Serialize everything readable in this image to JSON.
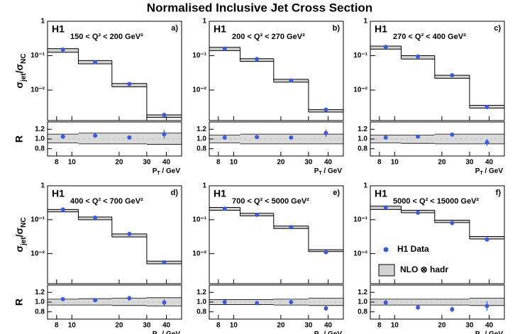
{
  "chart_data": {
    "type": "step",
    "title": "Normalised Inclusive Jet Cross Section",
    "y_label": [
      "σ",
      "jet",
      "/σ",
      "NC"
    ],
    "ratio_label": "R",
    "x_label": [
      "P",
      "T",
      " / GeV"
    ],
    "experiment": "H1",
    "legend": {
      "data": "H1 Data",
      "theory": "NLO ⊗ hadr"
    },
    "data_color": "#3b5bdb",
    "band_color": "#d3d3d3",
    "log_x": true,
    "log_y": true,
    "bins": [
      7,
      11,
      18,
      30,
      50
    ],
    "xlim": [
      7,
      50
    ],
    "xticks": [
      8,
      10,
      20,
      30,
      40
    ],
    "ylim": [
      0.0013,
      1
    ],
    "yticks": [
      1,
      {
        "value": 0.1,
        "label": "10⁻¹"
      },
      {
        "value": 0.01,
        "label": "10⁻²"
      }
    ],
    "ratio_ylim": [
      0.65,
      1.35
    ],
    "ratio_yticks": [
      {
        "value": 0.8,
        "label": "0.8"
      },
      {
        "value": 1.0,
        "label": "1.0"
      },
      {
        "value": 1.2,
        "label": "1.2"
      }
    ],
    "ratio_ref": 1.0,
    "panels": [
      {
        "label": "150 < Q² < 200 GeV²",
        "tag": "a)",
        "values": [
          0.15,
          0.065,
          0.015,
          0.0019
        ],
        "nlo_lower": [
          0.125,
          0.058,
          0.0125,
          0.0016
        ],
        "nlo_upper": [
          0.16,
          0.072,
          0.0155,
          0.0019
        ],
        "ratio": [
          1.05,
          1.07,
          1.03,
          1.1
        ],
        "ratio_err": [
          0.03,
          0.03,
          0.04,
          0.09
        ],
        "band_lower": [
          0.92,
          0.9,
          0.9,
          0.89
        ],
        "band_upper": [
          1.1,
          1.12,
          1.12,
          1.12
        ]
      },
      {
        "label": "200 < Q² < 270 GeV²",
        "tag": "b)",
        "values": [
          0.16,
          0.08,
          0.019,
          0.0027
        ],
        "nlo_lower": [
          0.14,
          0.068,
          0.017,
          0.0023
        ],
        "nlo_upper": [
          0.175,
          0.082,
          0.0205,
          0.0027
        ],
        "ratio": [
          1.03,
          1.04,
          1.03,
          1.12
        ],
        "ratio_err": [
          0.03,
          0.03,
          0.04,
          0.08
        ],
        "band_lower": [
          0.92,
          0.9,
          0.9,
          0.9
        ],
        "band_upper": [
          1.08,
          1.1,
          1.1,
          1.1
        ]
      },
      {
        "label": "270 < Q² < 400 GeV²",
        "tag": "c)",
        "values": [
          0.18,
          0.095,
          0.027,
          0.0032
        ],
        "nlo_lower": [
          0.155,
          0.08,
          0.022,
          0.003
        ],
        "nlo_upper": [
          0.19,
          0.1,
          0.027,
          0.0036
        ],
        "ratio": [
          1.03,
          1.05,
          1.09,
          0.93
        ],
        "ratio_err": [
          0.03,
          0.03,
          0.04,
          0.07
        ],
        "band_lower": [
          0.92,
          0.91,
          0.9,
          0.9
        ],
        "band_upper": [
          1.08,
          1.08,
          1.1,
          1.1
        ]
      },
      {
        "label": "400 < Q² < 700 GeV²",
        "tag": "d)",
        "values": [
          0.2,
          0.115,
          0.038,
          0.0055
        ],
        "nlo_lower": [
          0.17,
          0.1,
          0.031,
          0.005
        ],
        "nlo_upper": [
          0.2,
          0.12,
          0.038,
          0.006
        ],
        "ratio": [
          1.06,
          1.04,
          1.08,
          0.99
        ],
        "ratio_err": [
          0.03,
          0.03,
          0.05,
          0.07
        ],
        "band_lower": [
          0.94,
          0.94,
          0.93,
          0.92
        ],
        "band_upper": [
          1.06,
          1.07,
          1.08,
          1.09
        ]
      },
      {
        "label": "700 < Q² < 5000 GeV²",
        "tag": "e)",
        "values": [
          0.21,
          0.14,
          0.06,
          0.011
        ],
        "nlo_lower": [
          0.19,
          0.13,
          0.055,
          0.0115
        ],
        "nlo_upper": [
          0.23,
          0.155,
          0.065,
          0.013
        ],
        "ratio": [
          1.0,
          0.98,
          1.0,
          0.87
        ],
        "ratio_err": [
          0.02,
          0.02,
          0.03,
          0.05
        ],
        "band_lower": [
          0.95,
          0.95,
          0.94,
          0.93
        ],
        "band_upper": [
          1.05,
          1.05,
          1.06,
          1.08
        ]
      },
      {
        "label": "5000 < Q² < 15000 GeV²",
        "tag": "f)",
        "values": [
          0.23,
          0.16,
          0.08,
          0.026
        ],
        "nlo_lower": [
          0.2,
          0.16,
          0.082,
          0.027
        ],
        "nlo_upper": [
          0.25,
          0.19,
          0.097,
          0.032
        ],
        "ratio": [
          0.99,
          0.89,
          0.85,
          0.92
        ],
        "ratio_err": [
          0.05,
          0.05,
          0.06,
          0.1
        ],
        "band_lower": [
          0.94,
          0.94,
          0.94,
          0.93
        ],
        "band_upper": [
          1.06,
          1.06,
          1.06,
          1.08
        ]
      }
    ]
  }
}
